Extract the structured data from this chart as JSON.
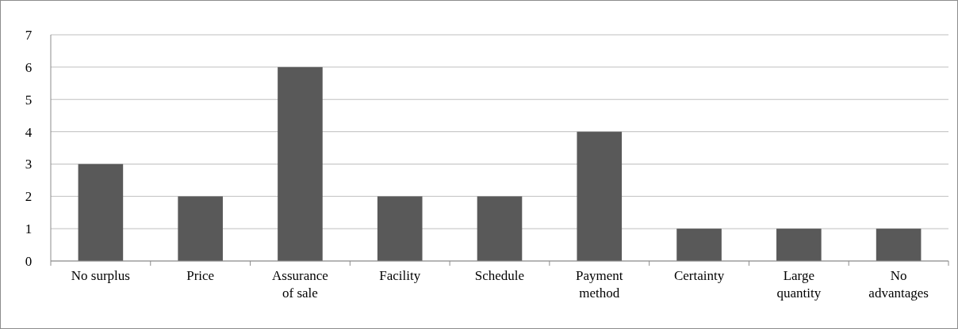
{
  "chart_data": {
    "type": "bar",
    "categories": [
      "No surplus",
      "Price",
      "Assurance of sale",
      "Facility",
      "Schedule",
      "Payment method",
      "Certainty",
      "Large quantity",
      "No advantages"
    ],
    "values": [
      3,
      2,
      6,
      2,
      2,
      4,
      1,
      1,
      1
    ],
    "color": "#595959",
    "ylim": [
      0,
      7
    ],
    "yticks": [
      0,
      1,
      2,
      3,
      4,
      5,
      6,
      7
    ],
    "grid": "y"
  }
}
